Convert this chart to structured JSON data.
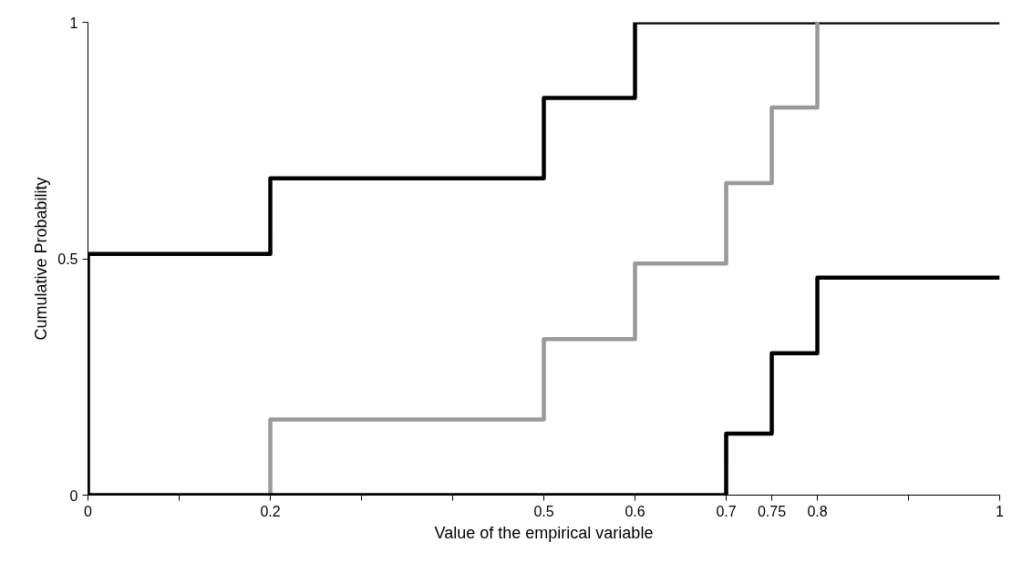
{
  "chart_data": {
    "type": "step",
    "xlabel": "Value of the empirical variable",
    "ylabel": "Cumulative Probability",
    "series": [
      {
        "color": "#000000",
        "x": [
          0,
          0,
          0.2,
          0.5,
          0.6,
          1
        ],
        "values": [
          0,
          0.51,
          0.67,
          0.84,
          1,
          1
        ]
      },
      {
        "color": "#999999",
        "x": [
          0.2,
          0.2,
          0.5,
          0.6,
          0.7,
          0.75,
          0.8,
          0.8
        ],
        "values": [
          0,
          0.16,
          0.33,
          0.49,
          0.66,
          0.82,
          1,
          1
        ]
      },
      {
        "color": "#000000",
        "x": [
          0,
          0.7,
          0.75,
          0.8,
          1
        ],
        "values": [
          0,
          0.13,
          0.3,
          0.46,
          0.46
        ]
      }
    ],
    "xlim": [
      0,
      1
    ],
    "ylim": [
      0,
      1
    ],
    "xticks": [
      0,
      {
        "value": 0.1,
        "label": null
      },
      0.2,
      {
        "value": 0.3,
        "label": null
      },
      {
        "value": 0.4,
        "label": null
      },
      0.5,
      0.6,
      0.7,
      0.75,
      0.8,
      {
        "value": 0.9,
        "label": null
      },
      1
    ],
    "yticks": [
      0,
      0.5,
      1
    ],
    "grid": false,
    "marker": "none",
    "line_style": "solid"
  }
}
